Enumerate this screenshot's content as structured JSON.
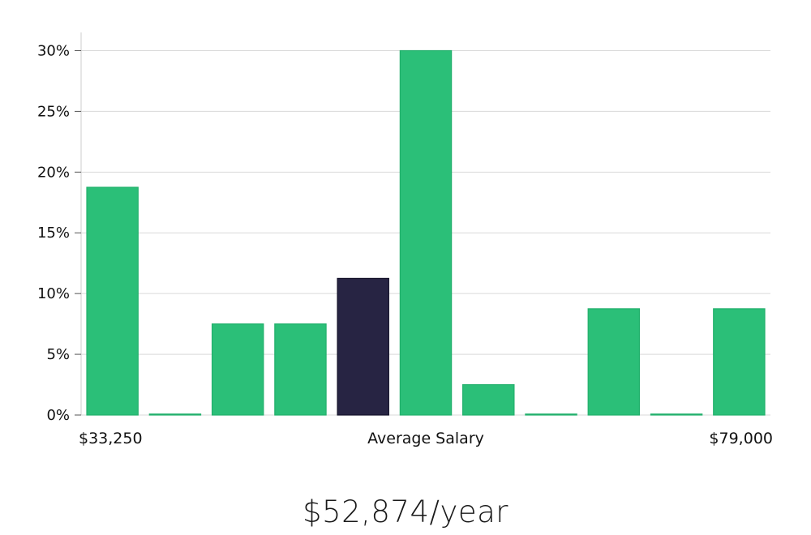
{
  "headline": "$52,874/year",
  "colors": {
    "bar": "#2bbf78",
    "bar_stroke": "#22b06c",
    "highlight_bar": "#272443",
    "grid": "#d9d9d9",
    "axis": "#cccccc"
  },
  "chart_data": {
    "type": "bar",
    "title": "",
    "xlabel": "Average Salary",
    "ylabel": "",
    "x_start_label": "$33,250",
    "x_end_label": "$79,000",
    "ylim": [
      0,
      0.315
    ],
    "y_ticks": [
      0,
      0.05,
      0.1,
      0.15,
      0.2,
      0.25,
      0.3
    ],
    "y_tick_labels": [
      "0%",
      "5%",
      "10%",
      "15%",
      "20%",
      "25%",
      "30%"
    ],
    "grid": true,
    "highlight_index": 4,
    "values": [
      0.1875,
      0.0,
      0.075,
      0.075,
      0.1125,
      0.3,
      0.025,
      0.0,
      0.0875,
      0.0,
      0.0875
    ]
  }
}
